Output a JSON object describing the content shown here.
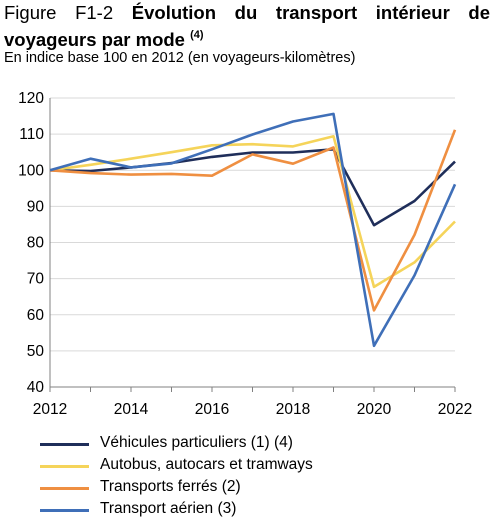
{
  "title": {
    "prefix": "Figure F1-2",
    "main": "Évolution du transport intérieur de voyageurs par mode",
    "line1_bold": "Évolution du transport intérieur de",
    "line2": "voyageurs par mode",
    "note": "(4)"
  },
  "subtitle": "En indice base 100 en 2012 (en voyageurs-kilomètres)",
  "chart_data": {
    "type": "line",
    "title": "Évolution du transport intérieur de voyageurs par mode",
    "xlim": [
      2012,
      2022
    ],
    "ylim": [
      40,
      120
    ],
    "xticks": [
      "2012",
      "2014",
      "2016",
      "2018",
      "2020",
      "2022"
    ],
    "yticks": [
      "40",
      "50",
      "60",
      "70",
      "80",
      "90",
      "100",
      "110",
      "120"
    ],
    "grid": "horizontal",
    "legend_position": "bottom",
    "x": [
      2012,
      2013,
      2014,
      2015,
      2016,
      2017,
      2018,
      2019,
      2020,
      2021,
      2022
    ],
    "series": [
      {
        "name": "Véhicules particuliers (1) (4)",
        "color": "#1f2e5a",
        "values": [
          100,
          99.8,
          100.8,
          102,
          103.7,
          104.9,
          104.9,
          105.8,
          84.8,
          91.5,
          102.4
        ]
      },
      {
        "name": "Autobus, autocars et tramways",
        "color": "#f5d45a",
        "values": [
          100,
          101.5,
          103.2,
          105,
          106.9,
          107.2,
          106.6,
          109.4,
          67.7,
          74.5,
          85.8
        ]
      },
      {
        "name": "Transports ferrés (2)",
        "color": "#ef8f41",
        "values": [
          100,
          99.2,
          98.8,
          99,
          98.5,
          104.4,
          101.8,
          106.3,
          61.2,
          82.1,
          111.2
        ]
      },
      {
        "name": "Transport aérien (3)",
        "color": "#3f6fb8",
        "values": [
          100,
          103.2,
          100.8,
          101.9,
          105.8,
          109.9,
          113.5,
          115.6,
          51.4,
          70.9,
          96.1
        ]
      }
    ]
  }
}
